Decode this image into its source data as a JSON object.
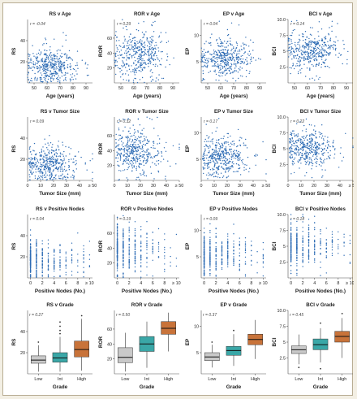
{
  "colors": {
    "point": "#2f6db5",
    "box_low": "#c9c9c9",
    "box_int": "#3aa7a7",
    "box_high": "#c8733a",
    "median": "#111111"
  },
  "chart_data": [
    {
      "type": "scatter",
      "title": "RS v Age",
      "r_label": "r = -0.04",
      "xlabel": "Age (years)",
      "ylabel": "RS",
      "xlim": [
        45,
        95
      ],
      "ylim": [
        0,
        60
      ],
      "xticks": [
        50,
        60,
        70,
        80,
        90
      ],
      "yticks": [
        20,
        40
      ],
      "x_mean": 63,
      "x_sd": 10,
      "y_mean": 16,
      "y_sd": 8,
      "n": 420,
      "x_min": 45
    },
    {
      "type": "scatter",
      "title": "ROR v Age",
      "r_label": "r = 0.29",
      "xlabel": "Age (years)",
      "ylabel": "ROR",
      "xlim": [
        45,
        95
      ],
      "ylim": [
        0,
        85
      ],
      "xticks": [
        50,
        60,
        70,
        80,
        90
      ],
      "yticks": [
        20,
        40,
        60
      ],
      "x_mean": 63,
      "x_sd": 10,
      "y_mean": 38,
      "y_sd": 16,
      "n": 420,
      "x_min": 45
    },
    {
      "type": "scatter",
      "title": "EP v Age",
      "r_label": "r = 0.04",
      "xlabel": "Age (years)",
      "ylabel": "EP",
      "xlim": [
        45,
        95
      ],
      "ylim": [
        1,
        13
      ],
      "xticks": [
        50,
        60,
        70,
        80,
        90
      ],
      "yticks": [
        5,
        10
      ],
      "x_mean": 63,
      "x_sd": 10,
      "y_mean": 5.5,
      "y_sd": 1.8,
      "n": 420,
      "x_min": 45
    },
    {
      "type": "scatter",
      "title": "BCI v Age",
      "r_label": "r = 0.14",
      "xlabel": "Age (years)",
      "ylabel": "BCI",
      "xlim": [
        45,
        95
      ],
      "ylim": [
        0,
        10
      ],
      "xticks": [
        50,
        60,
        70,
        80,
        90
      ],
      "yticks": [
        2.5,
        5.0,
        7.5,
        10.0
      ],
      "x_mean": 63,
      "x_sd": 10,
      "y_mean": 5.0,
      "y_sd": 1.5,
      "n": 420,
      "x_min": 45
    },
    {
      "type": "scatter",
      "title": "RS v Tumor Size",
      "r_label": "r = 0.09",
      "xlabel": "Tumor Size (mm)",
      "ylabel": "RS",
      "xlim": [
        0,
        50
      ],
      "ylim": [
        0,
        60
      ],
      "xticks": [
        0,
        10,
        20,
        30,
        40,
        "≥ 50"
      ],
      "yticks": [
        20,
        40
      ],
      "x_mean": 16,
      "x_sd": 9,
      "y_mean": 16,
      "y_sd": 8,
      "n": 420,
      "x_min": 1
    },
    {
      "type": "scatter",
      "title": "ROR v Tumor Size",
      "r_label": "r = 0.32",
      "xlabel": "Tumor Size (mm)",
      "ylabel": "ROR",
      "xlim": [
        0,
        50
      ],
      "ylim": [
        0,
        85
      ],
      "xticks": [
        0,
        10,
        20,
        30,
        40,
        "≥ 50"
      ],
      "yticks": [
        20,
        40,
        60
      ],
      "x_mean": 16,
      "x_sd": 9,
      "y_mean": 38,
      "y_sd": 16,
      "n": 420,
      "x_min": 1
    },
    {
      "type": "scatter",
      "title": "EP v Tumor Size",
      "r_label": "r = 0.17",
      "xlabel": "Tumor Size (mm)",
      "ylabel": "EP",
      "xlim": [
        0,
        50
      ],
      "ylim": [
        1,
        13
      ],
      "xticks": [
        0,
        10,
        20,
        30,
        40,
        "≥ 50"
      ],
      "yticks": [
        5,
        10
      ],
      "x_mean": 16,
      "x_sd": 9,
      "y_mean": 5.5,
      "y_sd": 1.8,
      "n": 420,
      "x_min": 1
    },
    {
      "type": "scatter",
      "title": "BCI v Tumor Size",
      "r_label": "r = 0.22",
      "xlabel": "Tumor Size (mm)",
      "ylabel": "BCI",
      "xlim": [
        0,
        50
      ],
      "ylim": [
        0,
        10
      ],
      "xticks": [
        0,
        10,
        20,
        30,
        40,
        "≥ 50"
      ],
      "yticks": [
        2.5,
        5.0,
        7.5,
        10.0
      ],
      "x_mean": 16,
      "x_sd": 9,
      "y_mean": 5.0,
      "y_sd": 1.5,
      "n": 420,
      "x_min": 1
    },
    {
      "type": "scatter",
      "title": "RS v Positive Nodes",
      "r_label": "r = 0.04",
      "xlabel": "Positive Nodes (No.)",
      "ylabel": "RS",
      "xlim": [
        -0.5,
        10.5
      ],
      "ylim": [
        0,
        60
      ],
      "xticks": [
        0,
        2,
        4,
        6,
        8,
        "≥ 10"
      ],
      "yticks": [
        20,
        40
      ],
      "y_mean": 16,
      "y_sd": 8,
      "n": 420,
      "x_discrete": true
    },
    {
      "type": "scatter",
      "title": "ROR v Positive Nodes",
      "r_label": "r = 0.19",
      "xlabel": "Positive Nodes (No.)",
      "ylabel": "ROR",
      "xlim": [
        -0.5,
        10.5
      ],
      "ylim": [
        0,
        85
      ],
      "xticks": [
        0,
        2,
        4,
        6,
        8,
        "≥ 10"
      ],
      "yticks": [
        20,
        40,
        60
      ],
      "y_mean": 38,
      "y_sd": 16,
      "n": 420,
      "x_discrete": true
    },
    {
      "type": "scatter",
      "title": "EP v Positive Nodes",
      "r_label": "r = 0.09",
      "xlabel": "Positive Nodes (No.)",
      "ylabel": "EP",
      "xlim": [
        -0.5,
        10.5
      ],
      "ylim": [
        1,
        13
      ],
      "xticks": [
        0,
        2,
        4,
        6,
        8,
        "≥ 10"
      ],
      "yticks": [
        5,
        10
      ],
      "y_mean": 5.5,
      "y_sd": 1.8,
      "n": 420,
      "x_discrete": true
    },
    {
      "type": "scatter",
      "title": "BCI v Positive Nodes",
      "r_label": "r = 0.18",
      "xlabel": "Positive Nodes (No.)",
      "ylabel": "BCI",
      "xlim": [
        -0.5,
        10.5
      ],
      "ylim": [
        0,
        10
      ],
      "xticks": [
        0,
        2,
        4,
        6,
        8,
        "≥ 10"
      ],
      "yticks": [
        2.5,
        5.0,
        7.5,
        10.0
      ],
      "y_mean": 5.0,
      "y_sd": 1.5,
      "n": 420,
      "x_discrete": true
    },
    {
      "type": "box",
      "title": "RS v Grade",
      "r_label": "r = 0.27",
      "xlabel": "Grade",
      "ylabel": "RS",
      "categories": [
        "Low",
        "Int",
        "High"
      ],
      "ylim": [
        0,
        60
      ],
      "yticks": [
        20,
        40
      ],
      "boxes": [
        {
          "wlo": 2,
          "q1": 10,
          "med": 13,
          "q3": 17,
          "whi": 27,
          "out": [
            30
          ]
        },
        {
          "wlo": 2,
          "q1": 11,
          "med": 15,
          "q3": 20,
          "whi": 35,
          "out": [
            38,
            41,
            45,
            49
          ]
        },
        {
          "wlo": 3,
          "q1": 16,
          "med": 23,
          "q3": 31,
          "whi": 52,
          "out": [
            55
          ]
        }
      ]
    },
    {
      "type": "box",
      "title": "ROR v Grade",
      "r_label": "r = 0.50",
      "xlabel": "Grade",
      "ylabel": "ROR",
      "categories": [
        "Low",
        "Int",
        "High"
      ],
      "ylim": [
        0,
        85
      ],
      "yticks": [
        20,
        40,
        60
      ],
      "boxes": [
        {
          "wlo": 3,
          "q1": 15,
          "med": 22,
          "q3": 35,
          "whi": 55,
          "out": []
        },
        {
          "wlo": 8,
          "q1": 30,
          "med": 40,
          "q3": 50,
          "whi": 70,
          "out": []
        },
        {
          "wlo": 30,
          "q1": 53,
          "med": 61,
          "q3": 70,
          "whi": 82,
          "out": []
        }
      ]
    },
    {
      "type": "box",
      "title": "EP v Grade",
      "r_label": "r = 0.37",
      "xlabel": "Grade",
      "ylabel": "EP",
      "categories": [
        "Low",
        "Int",
        "High"
      ],
      "ylim": [
        1,
        13
      ],
      "yticks": [
        5,
        10
      ],
      "boxes": [
        {
          "wlo": 2.2,
          "q1": 3.5,
          "med": 4.2,
          "q3": 5.0,
          "whi": 6.5,
          "out": [
            7.0
          ]
        },
        {
          "wlo": 2.5,
          "q1": 4.5,
          "med": 5.4,
          "q3": 6.2,
          "whi": 8.5,
          "out": [
            9.2
          ]
        },
        {
          "wlo": 3.8,
          "q1": 6.5,
          "med": 7.5,
          "q3": 8.5,
          "whi": 11.2,
          "out": []
        }
      ]
    },
    {
      "type": "box",
      "title": "BCI v Grade",
      "r_label": "r = 0.45",
      "xlabel": "Grade",
      "ylabel": "BCI",
      "categories": [
        "Low",
        "Int",
        "High"
      ],
      "ylim": [
        0,
        10
      ],
      "yticks": [
        2.5,
        5.0,
        7.5,
        10.0
      ],
      "boxes": [
        {
          "wlo": 1.5,
          "q1": 3.2,
          "med": 3.8,
          "q3": 4.4,
          "whi": 6.2,
          "out": [
            1.0
          ]
        },
        {
          "wlo": 1.8,
          "q1": 3.8,
          "med": 4.6,
          "q3": 5.5,
          "whi": 7.2,
          "out": [
            0.8,
            8.0
          ]
        },
        {
          "wlo": 2.5,
          "q1": 5.0,
          "med": 5.9,
          "q3": 6.7,
          "whi": 8.8,
          "out": [
            9.5
          ]
        }
      ]
    }
  ]
}
